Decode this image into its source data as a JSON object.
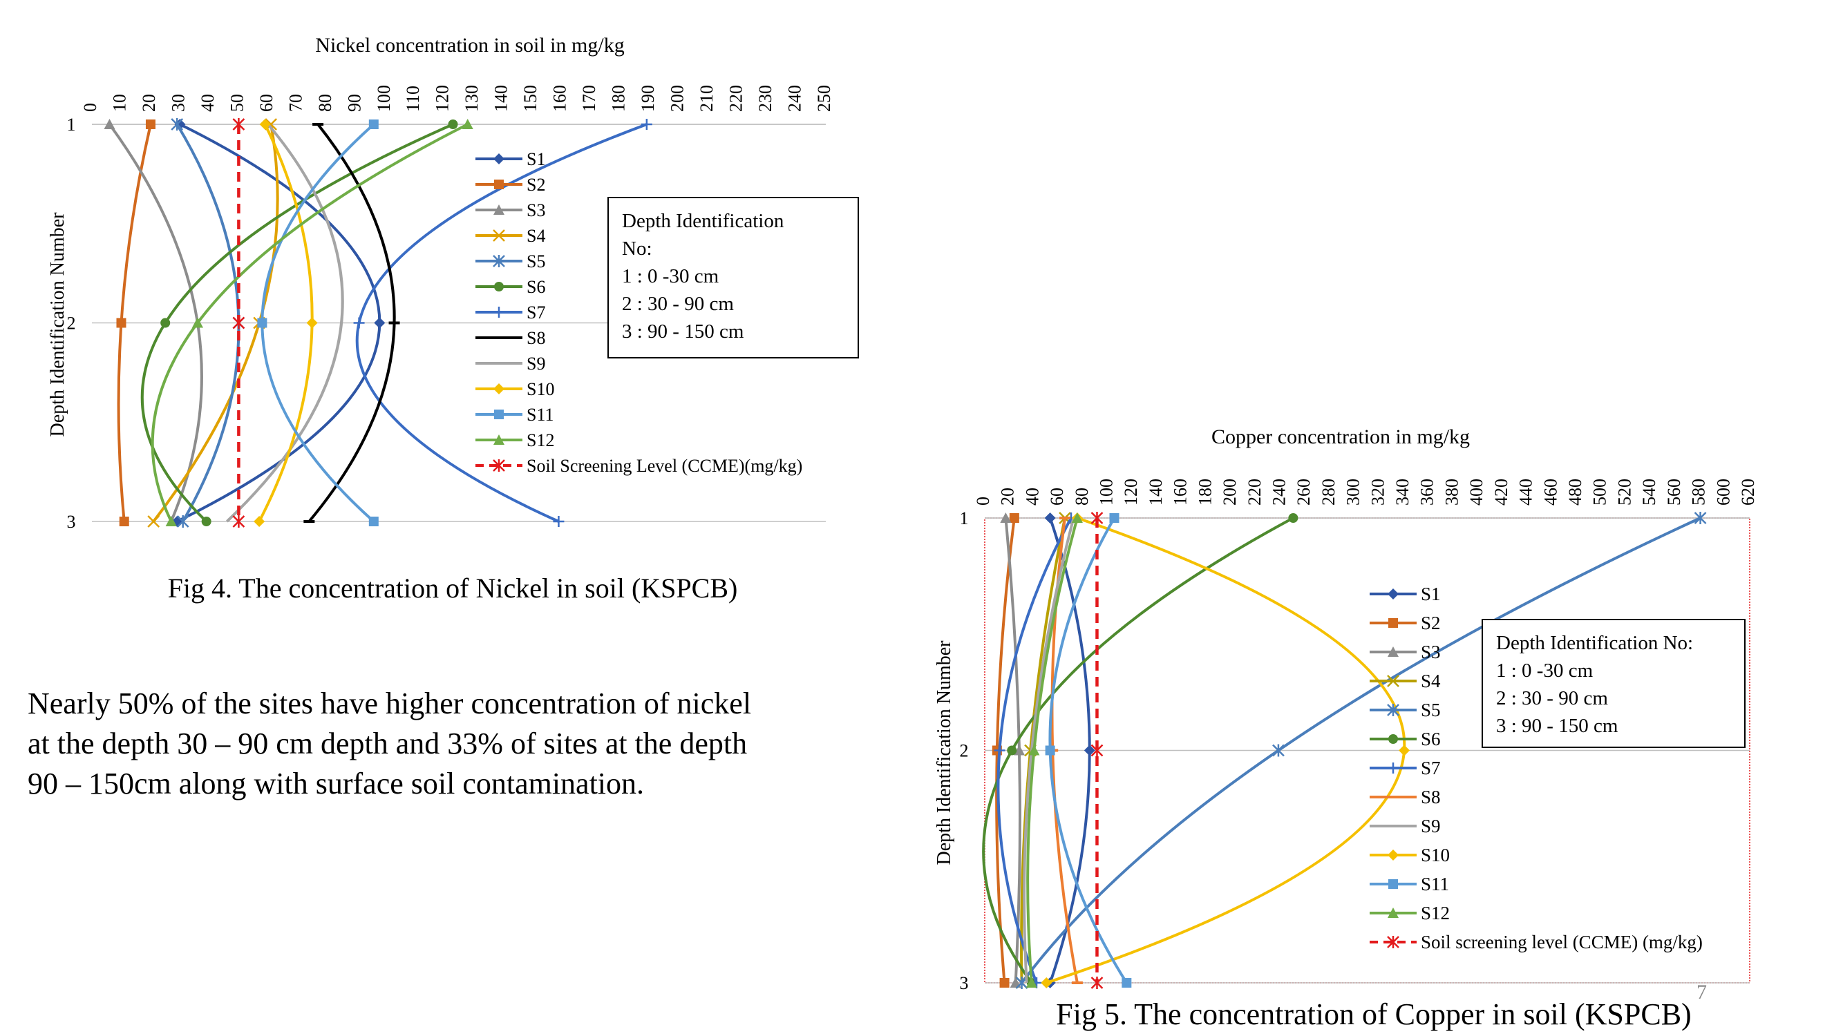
{
  "figures": [
    {
      "caption": "Fig 4. The concentration of Nickel in soil (KSPCB)",
      "info_box": {
        "title": "Depth Identification No:",
        "lines": [
          "1  : 0 -30 cm",
          "2  : 30 - 90 cm",
          "3  : 90 - 150 cm"
        ]
      }
    },
    {
      "caption": "Fig 5.  The concentration of Copper in soil (KSPCB)",
      "info_box": {
        "title": "Depth Identification No:",
        "lines": [
          "1  : 0 -30 cm",
          "2  : 30 - 90 cm",
          "3  : 90 - 150 cm"
        ]
      }
    }
  ],
  "paragraph": [
    "Nearly 50% of the sites have higher concentration of nickel",
    "at the depth 30 – 90 cm depth and 33% of sites at the depth",
    "90 – 150cm along with surface soil contamination."
  ],
  "slide_number": "7",
  "chart_data": [
    {
      "type": "line",
      "title": "Nickel concentration in soil in mg/kg",
      "ylabel": "Depth Identification Number",
      "x_axis_position": "top",
      "y_inverted": true,
      "xlim": [
        0,
        250
      ],
      "x_ticks": [
        0,
        10,
        20,
        30,
        40,
        50,
        60,
        70,
        80,
        90,
        100,
        110,
        120,
        130,
        140,
        150,
        160,
        170,
        180,
        190,
        200,
        210,
        220,
        230,
        240,
        250
      ],
      "y_ticks": [
        1,
        2,
        3
      ],
      "legend_position": "right",
      "series": [
        {
          "name": "S1",
          "values": [
            30,
            98,
            29
          ],
          "color": "#2E55A4",
          "marker": "diamond"
        },
        {
          "name": "S2",
          "values": [
            20,
            10,
            11
          ],
          "color": "#D2691E",
          "marker": "square"
        },
        {
          "name": "S3",
          "values": [
            6,
            36,
            27
          ],
          "color": "#8C8C8C",
          "marker": "triangle"
        },
        {
          "name": "S4",
          "values": [
            61,
            57,
            21
          ],
          "color": "#E0A100",
          "marker": "x"
        },
        {
          "name": "S5",
          "values": [
            29,
            50,
            31
          ],
          "color": "#4A7EBB",
          "marker": "star"
        },
        {
          "name": "S6",
          "values": [
            123,
            25,
            39
          ],
          "color": "#4E8A2E",
          "marker": "circle"
        },
        {
          "name": "S7",
          "values": [
            189,
            91,
            159
          ],
          "color": "#3A6CC4",
          "marker": "plus"
        },
        {
          "name": "S8",
          "values": [
            77,
            103,
            74
          ],
          "color": "#000000",
          "marker": "dash"
        },
        {
          "name": "S9",
          "values": [
            60,
            85,
            46
          ],
          "color": "#A5A5A5",
          "marker": "none"
        },
        {
          "name": "S10",
          "values": [
            59,
            75,
            57
          ],
          "color": "#F5C000",
          "marker": "diamond"
        },
        {
          "name": "S11",
          "values": [
            96,
            58,
            96
          ],
          "color": "#5B9BD5",
          "marker": "square"
        },
        {
          "name": "S12",
          "values": [
            128,
            36,
            27
          ],
          "color": "#70AD47",
          "marker": "triangle"
        },
        {
          "name": "Soil Screening Level (CCME)(mg/kg)",
          "values": [
            50,
            50,
            50
          ],
          "color": "#E31A1C",
          "marker": "star",
          "dashed": true
        }
      ]
    },
    {
      "type": "line",
      "title": "Copper concentration in mg/kg",
      "ylabel": "Depth Identification Number",
      "x_axis_position": "top",
      "y_inverted": true,
      "xlim": [
        0,
        620
      ],
      "x_ticks": [
        0,
        20,
        40,
        60,
        80,
        100,
        120,
        140,
        160,
        180,
        200,
        220,
        240,
        260,
        280,
        300,
        320,
        340,
        360,
        380,
        400,
        420,
        440,
        460,
        480,
        500,
        520,
        540,
        560,
        580,
        600,
        620
      ],
      "y_ticks": [
        1,
        2,
        3
      ],
      "legend_position": "right",
      "series": [
        {
          "name": "S1",
          "values": [
            53,
            85,
            53
          ],
          "color": "#2E55A4",
          "marker": "diamond"
        },
        {
          "name": "S2",
          "values": [
            24,
            10,
            16
          ],
          "color": "#D2691E",
          "marker": "square"
        },
        {
          "name": "S3",
          "values": [
            17,
            28,
            25
          ],
          "color": "#8C8C8C",
          "marker": "triangle"
        },
        {
          "name": "S4",
          "values": [
            65,
            37,
            30
          ],
          "color": "#B8A000",
          "marker": "x"
        },
        {
          "name": "S5",
          "values": [
            580,
            238,
            30
          ],
          "color": "#4A7EBB",
          "marker": "star"
        },
        {
          "name": "S6",
          "values": [
            250,
            22,
            38
          ],
          "color": "#4E8A2E",
          "marker": "circle"
        },
        {
          "name": "S7",
          "values": [
            70,
            12,
            42
          ],
          "color": "#3A6CC4",
          "marker": "plus"
        },
        {
          "name": "S8",
          "values": [
            65,
            55,
            75
          ],
          "color": "#ED7D31",
          "marker": "dash"
        },
        {
          "name": "S9",
          "values": [
            72,
            38,
            34
          ],
          "color": "#A5A5A5",
          "marker": "none"
        },
        {
          "name": "S10",
          "values": [
            75,
            340,
            50
          ],
          "color": "#F5C000",
          "marker": "diamond"
        },
        {
          "name": "S11",
          "values": [
            105,
            53,
            115
          ],
          "color": "#5B9BD5",
          "marker": "square"
        },
        {
          "name": "S12",
          "values": [
            75,
            40,
            38
          ],
          "color": "#70AD47",
          "marker": "triangle"
        },
        {
          "name": "Soil screening level (CCME) (mg/kg)",
          "values": [
            91,
            91,
            91
          ],
          "color": "#E31A1C",
          "marker": "star",
          "dashed": true
        }
      ]
    }
  ]
}
